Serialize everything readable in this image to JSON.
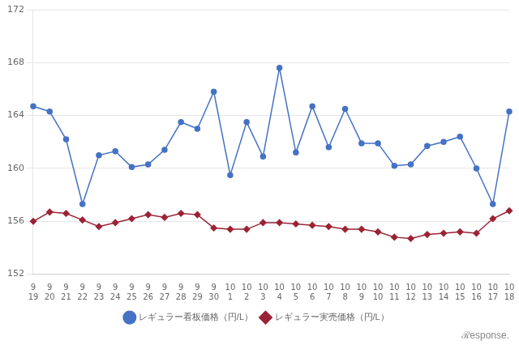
{
  "chart_data": {
    "type": "line",
    "categories": [
      "9\n19",
      "9\n20",
      "9\n21",
      "9\n22",
      "9\n23",
      "9\n24",
      "9\n25",
      "9\n26",
      "9\n27",
      "9\n28",
      "9\n29",
      "9\n30",
      "10\n1",
      "10\n2",
      "10\n3",
      "10\n4",
      "10\n5",
      "10\n6",
      "10\n7",
      "10\n8",
      "10\n9",
      "10\n10",
      "10\n11",
      "10\n12",
      "10\n13",
      "10\n14",
      "10\n15",
      "10\n16",
      "10\n17",
      "10\n18"
    ],
    "series": [
      {
        "name": "レギュラー看板価格（円/L）",
        "color": "#4472C4",
        "marker": "circle",
        "line_style": "solid",
        "values": [
          164.7,
          164.3,
          162.2,
          157.3,
          161.0,
          161.3,
          160.1,
          160.3,
          161.4,
          163.5,
          163.0,
          165.8,
          159.5,
          163.5,
          160.9,
          167.6,
          161.2,
          164.7,
          161.6,
          164.5,
          161.9,
          161.9,
          160.2,
          160.3,
          161.7,
          162.0,
          162.4,
          160.0,
          157.3,
          164.3
        ]
      },
      {
        "name": "レギュラー実売価格（円/L）",
        "color": "#9B2335",
        "marker": "diamond",
        "line_style": "solid",
        "values": [
          156.0,
          156.7,
          156.6,
          156.1,
          155.6,
          155.9,
          156.2,
          156.5,
          156.3,
          156.6,
          156.5,
          155.5,
          155.4,
          155.4,
          155.9,
          155.9,
          155.8,
          155.7,
          155.6,
          155.4,
          155.4,
          155.2,
          154.8,
          154.7,
          155.0,
          155.1,
          155.2,
          155.1,
          156.2,
          156.8
        ]
      }
    ],
    "ylim": [
      152,
      172
    ],
    "yticks": [
      152,
      156,
      160,
      164,
      168,
      172
    ],
    "grid": true,
    "legend": "bottom",
    "annotations": [
      "ℛesponse."
    ]
  }
}
